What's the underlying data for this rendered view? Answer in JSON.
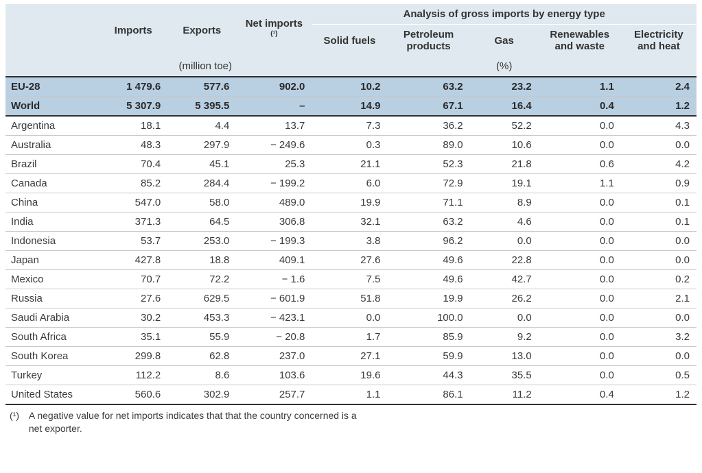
{
  "table": {
    "type": "table",
    "header": {
      "imports": "Imports",
      "exports": "Exports",
      "net_imports": "Net imports",
      "net_imports_sup": "(¹)",
      "analysis_group": "Analysis of gross imports by energy type",
      "solid_fuels": "Solid fuels",
      "petroleum": "Petroleum products",
      "gas": "Gas",
      "renewables": "Renewables and waste",
      "electricity": "Electricity and heat",
      "unit_left": "(million toe)",
      "unit_right": "(%)"
    },
    "highlight_rows": [
      {
        "label": "EU-28",
        "imports": "1 479.6",
        "exports": "577.6",
        "net": "902.0",
        "solid": "10.2",
        "petro": "63.2",
        "gas": "23.2",
        "renew": "1.1",
        "elec": "2.4"
      },
      {
        "label": "World",
        "imports": "5 307.9",
        "exports": "5 395.5",
        "net": "–",
        "solid": "14.9",
        "petro": "67.1",
        "gas": "16.4",
        "renew": "0.4",
        "elec": "1.2"
      }
    ],
    "rows": [
      {
        "label": "Argentina",
        "imports": "18.1",
        "exports": "4.4",
        "net": "13.7",
        "solid": "7.3",
        "petro": "36.2",
        "gas": "52.2",
        "renew": "0.0",
        "elec": "4.3"
      },
      {
        "label": "Australia",
        "imports": "48.3",
        "exports": "297.9",
        "net": "− 249.6",
        "solid": "0.3",
        "petro": "89.0",
        "gas": "10.6",
        "renew": "0.0",
        "elec": "0.0"
      },
      {
        "label": "Brazil",
        "imports": "70.4",
        "exports": "45.1",
        "net": "25.3",
        "solid": "21.1",
        "petro": "52.3",
        "gas": "21.8",
        "renew": "0.6",
        "elec": "4.2"
      },
      {
        "label": "Canada",
        "imports": "85.2",
        "exports": "284.4",
        "net": "− 199.2",
        "solid": "6.0",
        "petro": "72.9",
        "gas": "19.1",
        "renew": "1.1",
        "elec": "0.9"
      },
      {
        "label": "China",
        "imports": "547.0",
        "exports": "58.0",
        "net": "489.0",
        "solid": "19.9",
        "petro": "71.1",
        "gas": "8.9",
        "renew": "0.0",
        "elec": "0.1"
      },
      {
        "label": "India",
        "imports": "371.3",
        "exports": "64.5",
        "net": "306.8",
        "solid": "32.1",
        "petro": "63.2",
        "gas": "4.6",
        "renew": "0.0",
        "elec": "0.1"
      },
      {
        "label": "Indonesia",
        "imports": "53.7",
        "exports": "253.0",
        "net": "− 199.3",
        "solid": "3.8",
        "petro": "96.2",
        "gas": "0.0",
        "renew": "0.0",
        "elec": "0.0"
      },
      {
        "label": "Japan",
        "imports": "427.8",
        "exports": "18.8",
        "net": "409.1",
        "solid": "27.6",
        "petro": "49.6",
        "gas": "22.8",
        "renew": "0.0",
        "elec": "0.0"
      },
      {
        "label": "Mexico",
        "imports": "70.7",
        "exports": "72.2",
        "net": "− 1.6",
        "solid": "7.5",
        "petro": "49.6",
        "gas": "42.7",
        "renew": "0.0",
        "elec": "0.2"
      },
      {
        "label": "Russia",
        "imports": "27.6",
        "exports": "629.5",
        "net": "− 601.9",
        "solid": "51.8",
        "petro": "19.9",
        "gas": "26.2",
        "renew": "0.0",
        "elec": "2.1"
      },
      {
        "label": "Saudi Arabia",
        "imports": "30.2",
        "exports": "453.3",
        "net": "− 423.1",
        "solid": "0.0",
        "petro": "100.0",
        "gas": "0.0",
        "renew": "0.0",
        "elec": "0.0"
      },
      {
        "label": "South Africa",
        "imports": "35.1",
        "exports": "55.9",
        "net": "− 20.8",
        "solid": "1.7",
        "petro": "85.9",
        "gas": "9.2",
        "renew": "0.0",
        "elec": "3.2"
      },
      {
        "label": "South Korea",
        "imports": "299.8",
        "exports": "62.8",
        "net": "237.0",
        "solid": "27.1",
        "petro": "59.9",
        "gas": "13.0",
        "renew": "0.0",
        "elec": "0.0"
      },
      {
        "label": "Turkey",
        "imports": "112.2",
        "exports": "8.6",
        "net": "103.6",
        "solid": "19.6",
        "petro": "44.3",
        "gas": "35.5",
        "renew": "0.0",
        "elec": "0.5"
      },
      {
        "label": "United States",
        "imports": "560.6",
        "exports": "302.9",
        "net": "257.7",
        "solid": "1.1",
        "petro": "86.1",
        "gas": "11.2",
        "renew": "0.4",
        "elec": "1.2"
      }
    ],
    "footnote": {
      "marker": "(¹)",
      "text": "A negative value for net imports indicates that that the country concerned is a net exporter."
    },
    "colors": {
      "header_bg": "#dfe9ef",
      "highlight_bg": "#b9cfe2",
      "row_border": "#c8c8c8",
      "heavy_border": "#2f2f2f",
      "text": "#3a3a3a"
    }
  }
}
